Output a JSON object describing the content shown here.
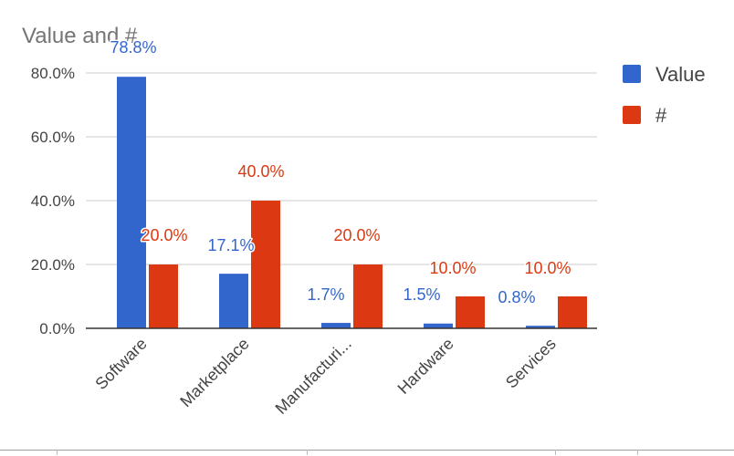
{
  "chart_data": {
    "type": "bar",
    "title": "Value and #",
    "categories": [
      "Software",
      "Marketplace",
      "Manufacturi...",
      "Hardware",
      "Services"
    ],
    "series": [
      {
        "name": "Value",
        "color": "#3366cc",
        "values": [
          78.8,
          17.1,
          1.7,
          1.5,
          0.8
        ],
        "labels": [
          "78.8%",
          "17.1%",
          "1.7%",
          "1.5%",
          "0.8%"
        ]
      },
      {
        "name": "#",
        "color": "#dc3912",
        "values": [
          20.0,
          40.0,
          20.0,
          10.0,
          10.0
        ],
        "labels": [
          "20.0%",
          "40.0%",
          "20.0%",
          "10.0%",
          "10.0%"
        ]
      }
    ],
    "yticks": [
      "0.0%",
      "20.0%",
      "40.0%",
      "60.0%",
      "80.0%"
    ],
    "ylim": [
      0,
      80
    ],
    "xlabel": "",
    "ylabel": "",
    "grid": true,
    "legend_position": "right"
  }
}
